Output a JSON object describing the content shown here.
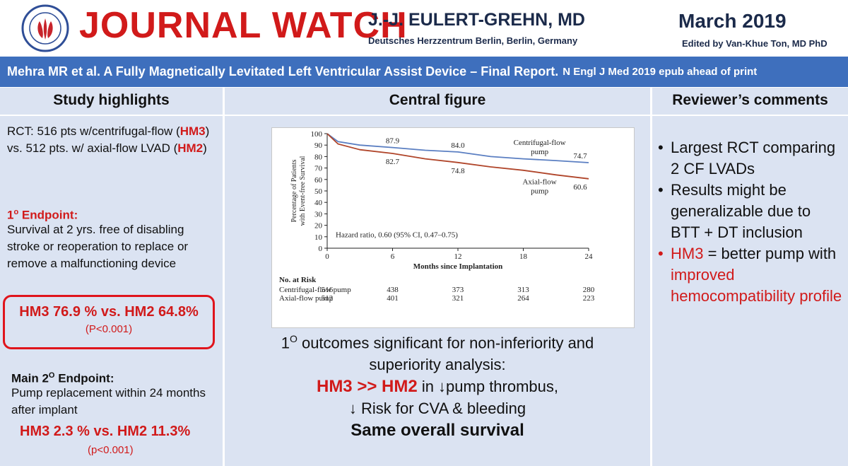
{
  "header": {
    "title": "JOURNAL WATCH",
    "author": "J.-J. EULERT-GREHN, MD",
    "affiliation": "Deutsches Herzzentrum Berlin, Berlin, Germany",
    "date": "March 2019",
    "editor": "Edited by Van-Khue Ton, MD PhD",
    "logo_icon": "society-logo-icon"
  },
  "citation": {
    "main": "Mehra MR et al. A Fully Magnetically Levitated Left Ventricular Assist Device – Final Report.",
    "source": "N Engl J Med 2019 epub ahead of print"
  },
  "columns": {
    "highlights_title": "Study highlights",
    "figure_title": "Central figure",
    "comments_title": "Reviewer’s comments"
  },
  "highlights": {
    "rct_a": "RCT: 516 pts  w/centrifugal-flow (",
    "hm3": "HM3",
    "rct_b": ") vs. 512 pts. w/ axial-flow LVAD (",
    "hm2": "HM2",
    "rct_c": ")",
    "primary_label": "1° Endpoint:",
    "primary_text": "Survival at 2 yrs. free of disabling stroke or reoperation to replace or remove a malfunctioning device",
    "primary_result": "HM3 76.9 % vs. HM2 64.8%",
    "primary_p": "(P<0.001)",
    "secondary_label": "Main 2O Endpoint:",
    "secondary_text": "Pump replacement within 24 months after implant",
    "secondary_result": "HM3 2.3 % vs. HM2 11.3%",
    "secondary_p": "(p<0.001)"
  },
  "outcome": {
    "line1": "1O outcomes significant for non-inferiority and superiority analysis:",
    "line2_red": "HM3 >> HM2",
    "line2_rest": " in ↓pump thrombus,",
    "line3": "↓ Risk for CVA & bleeding",
    "line4": "Same overall survival"
  },
  "comments": [
    {
      "text": "Largest RCT comparing 2 CF LVADs",
      "color": "#111111"
    },
    {
      "text": "Results might be generalizable due to BTT + DT inclusion",
      "color": "#111111"
    }
  ],
  "comment3": {
    "red1": "HM3",
    "plain": " = better pump with ",
    "red2": "improved hemocompatibility profile"
  },
  "chart_data": {
    "type": "line",
    "ylabel": "Percentage of Patients with Event-free Survival",
    "xlabel": "Months since Implantation",
    "xlim": [
      0,
      24
    ],
    "ylim": [
      0,
      100
    ],
    "xticks": [
      0,
      6,
      12,
      18,
      24
    ],
    "yticks": [
      0,
      10,
      20,
      30,
      40,
      50,
      60,
      70,
      80,
      90,
      100
    ],
    "annotation": "Hazard ratio, 0.60 (95% CI, 0.47–0.75)",
    "series": [
      {
        "name": "Centrifugal-flow pump",
        "color": "#5b7fc2",
        "x": [
          0,
          1,
          3,
          6,
          9,
          12,
          15,
          18,
          21,
          24
        ],
        "y": [
          100,
          93,
          90,
          87.9,
          85.5,
          84.0,
          80,
          78,
          76.5,
          74.7
        ]
      },
      {
        "name": "Axial-flow pump",
        "color": "#b0452a",
        "x": [
          0,
          1,
          3,
          6,
          9,
          12,
          15,
          18,
          21,
          24
        ],
        "y": [
          100,
          91,
          86,
          82.7,
          78,
          74.8,
          71,
          68,
          64,
          60.6
        ]
      }
    ],
    "labels": [
      {
        "x": 6,
        "y": 87.9,
        "text": "87.9"
      },
      {
        "x": 12,
        "y": 84.0,
        "text": "84.0"
      },
      {
        "x": 24,
        "y": 74.7,
        "text": "74.7"
      },
      {
        "x": 6,
        "y": 82.7,
        "text": "82.7"
      },
      {
        "x": 12,
        "y": 74.8,
        "text": "74.8"
      },
      {
        "x": 24,
        "y": 60.6,
        "text": "60.6"
      }
    ],
    "series_labels": [
      {
        "lines": [
          "Centrifugal-flow",
          "pump"
        ],
        "x": 19.5,
        "y": 90
      },
      {
        "lines": [
          "Axial-flow",
          "pump"
        ],
        "x": 19.5,
        "y": 56
      }
    ],
    "at_risk": {
      "title": "No. at Risk",
      "rows": [
        {
          "name": "Centrifugal-flow pump",
          "values": [
            516,
            438,
            373,
            313,
            280
          ]
        },
        {
          "name": "Axial-flow pump",
          "values": [
            512,
            401,
            321,
            264,
            223
          ]
        }
      ]
    }
  }
}
